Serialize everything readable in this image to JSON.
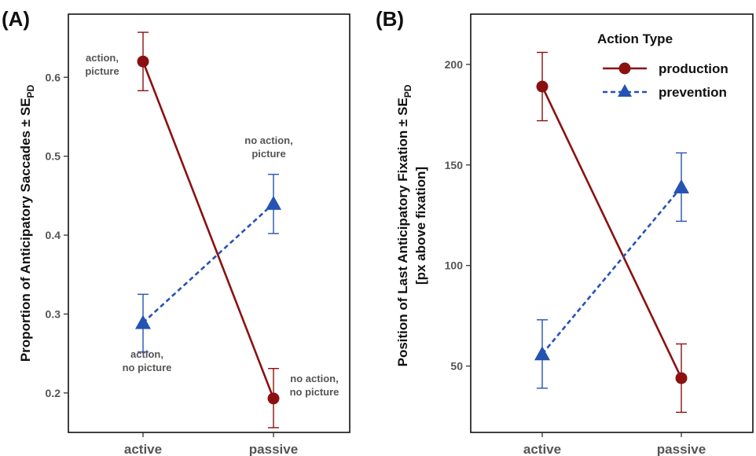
{
  "colors": {
    "production": "#8b1111",
    "prevention": "#2553b3"
  },
  "legend": {
    "title": "Action Type",
    "items": [
      {
        "label": "production",
        "marker": "circle",
        "line": "solid"
      },
      {
        "label": "prevention",
        "marker": "triangle",
        "line": "dashed"
      }
    ],
    "position": "top-right of panel B"
  },
  "chart_data": [
    {
      "type": "line",
      "panel_label": "(A)",
      "ylabel": "Proportion of Anticipatory Saccades ± SE",
      "ylabel_sub": "PD",
      "categories": [
        "active",
        "passive"
      ],
      "yticks": [
        "0.2",
        "0.3",
        "0.4",
        "0.5",
        "0.6"
      ],
      "ylim": [
        0.15,
        0.68
      ],
      "grid": false,
      "series": [
        {
          "name": "production",
          "values": [
            0.62,
            0.193
          ],
          "err_low": [
            0.583,
            0.156
          ],
          "err_high": [
            0.657,
            0.231
          ]
        },
        {
          "name": "prevention",
          "values": [
            0.289,
            0.44
          ],
          "err_low": [
            0.252,
            0.402
          ],
          "err_high": [
            0.325,
            0.477
          ]
        }
      ],
      "annotations": [
        {
          "lines": [
            "action,",
            "picture"
          ],
          "near": "production-active"
        },
        {
          "lines": [
            "no action,",
            "picture"
          ],
          "near": "prevention-passive"
        },
        {
          "lines": [
            "action,",
            "no picture"
          ],
          "near": "prevention-active"
        },
        {
          "lines": [
            "no action,",
            "no picture"
          ],
          "near": "production-passive"
        }
      ]
    },
    {
      "type": "line",
      "panel_label": "(B)",
      "ylabel": "Position of Last Anticipatory Fixation ± SE",
      "ylabel_sub": "PD",
      "ylabel2": "[px above fixation]",
      "categories": [
        "active",
        "passive"
      ],
      "yticks": [
        "50",
        "100",
        "150",
        "200"
      ],
      "ylim": [
        17,
        225
      ],
      "grid": false,
      "series": [
        {
          "name": "production",
          "values": [
            189,
            44
          ],
          "err_low": [
            172,
            27
          ],
          "err_high": [
            206,
            61
          ]
        },
        {
          "name": "prevention",
          "values": [
            56,
            139
          ],
          "err_low": [
            39,
            122
          ],
          "err_high": [
            73,
            156
          ]
        }
      ]
    }
  ]
}
